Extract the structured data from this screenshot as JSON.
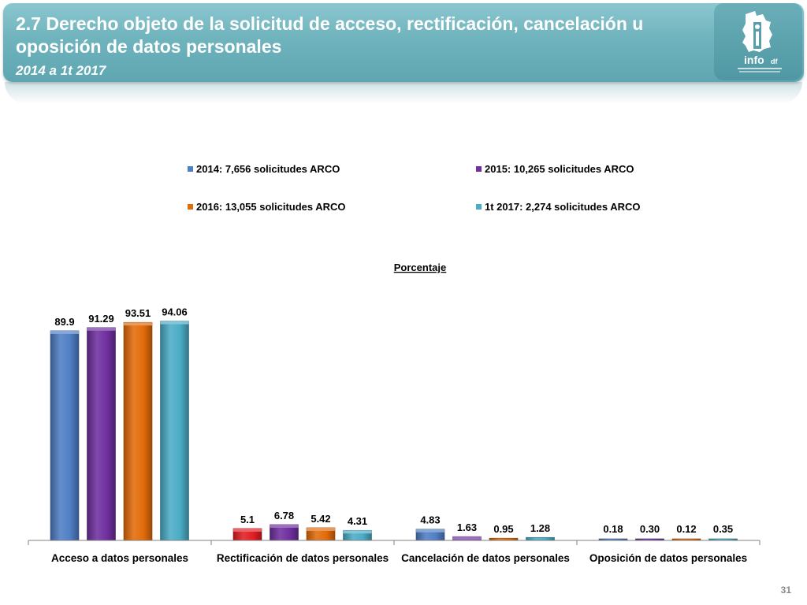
{
  "header": {
    "title": "2.7 Derecho objeto de la solicitud de acceso, rectificación, cancelación u oposición de datos personales",
    "subtitle": "2014 a 1t 2017",
    "logo_text": "info df"
  },
  "page_number": "31",
  "colors": {
    "header": "#6fb3bd",
    "series_2014": "#4f7fc4",
    "series_2015": "#7030a0",
    "series_2016": "#e36c0a",
    "series_1t2017": "#4bacc6",
    "highlight_red": "#e31e24"
  },
  "chart_data": {
    "type": "bar",
    "title": "Porcentaje",
    "xlabel": "",
    "ylabel": "",
    "categories": [
      "Acceso a datos personales",
      "Rectificación de datos personales",
      "Cancelación de datos personales",
      "Oposición de datos personales"
    ],
    "series": [
      {
        "name": "2014: 7,656 solicitudes ARCO",
        "color": "#4f7fc4",
        "values": [
          89.9,
          5.1,
          4.83,
          0.18
        ],
        "labels": [
          "89.9",
          "5.1",
          "4.83",
          "0.18"
        ]
      },
      {
        "name": "2015: 10,265 solicitudes ARCO",
        "color": "#7030a0",
        "values": [
          91.29,
          6.78,
          1.63,
          0.3
        ],
        "labels": [
          "91.29",
          "6.78",
          "1.63",
          "0.30"
        ]
      },
      {
        "name": "2016: 13,055 solicitudes ARCO",
        "color": "#e36c0a",
        "values": [
          93.51,
          5.42,
          0.95,
          0.12
        ],
        "labels": [
          "93.51",
          "5.42",
          "0.95",
          "0.12"
        ]
      },
      {
        "name": "1t 2017: 2,274 solicitudes ARCO",
        "color": "#4bacc6",
        "values": [
          94.06,
          4.31,
          1.28,
          0.35
        ],
        "labels": [
          "94.06",
          "4.31",
          "1.28",
          "0.35"
        ]
      }
    ],
    "highlight": {
      "series": 0,
      "category": 1,
      "color": "#e31e24"
    },
    "ylim": [
      0,
      100
    ],
    "grid": false,
    "legend": "top"
  }
}
